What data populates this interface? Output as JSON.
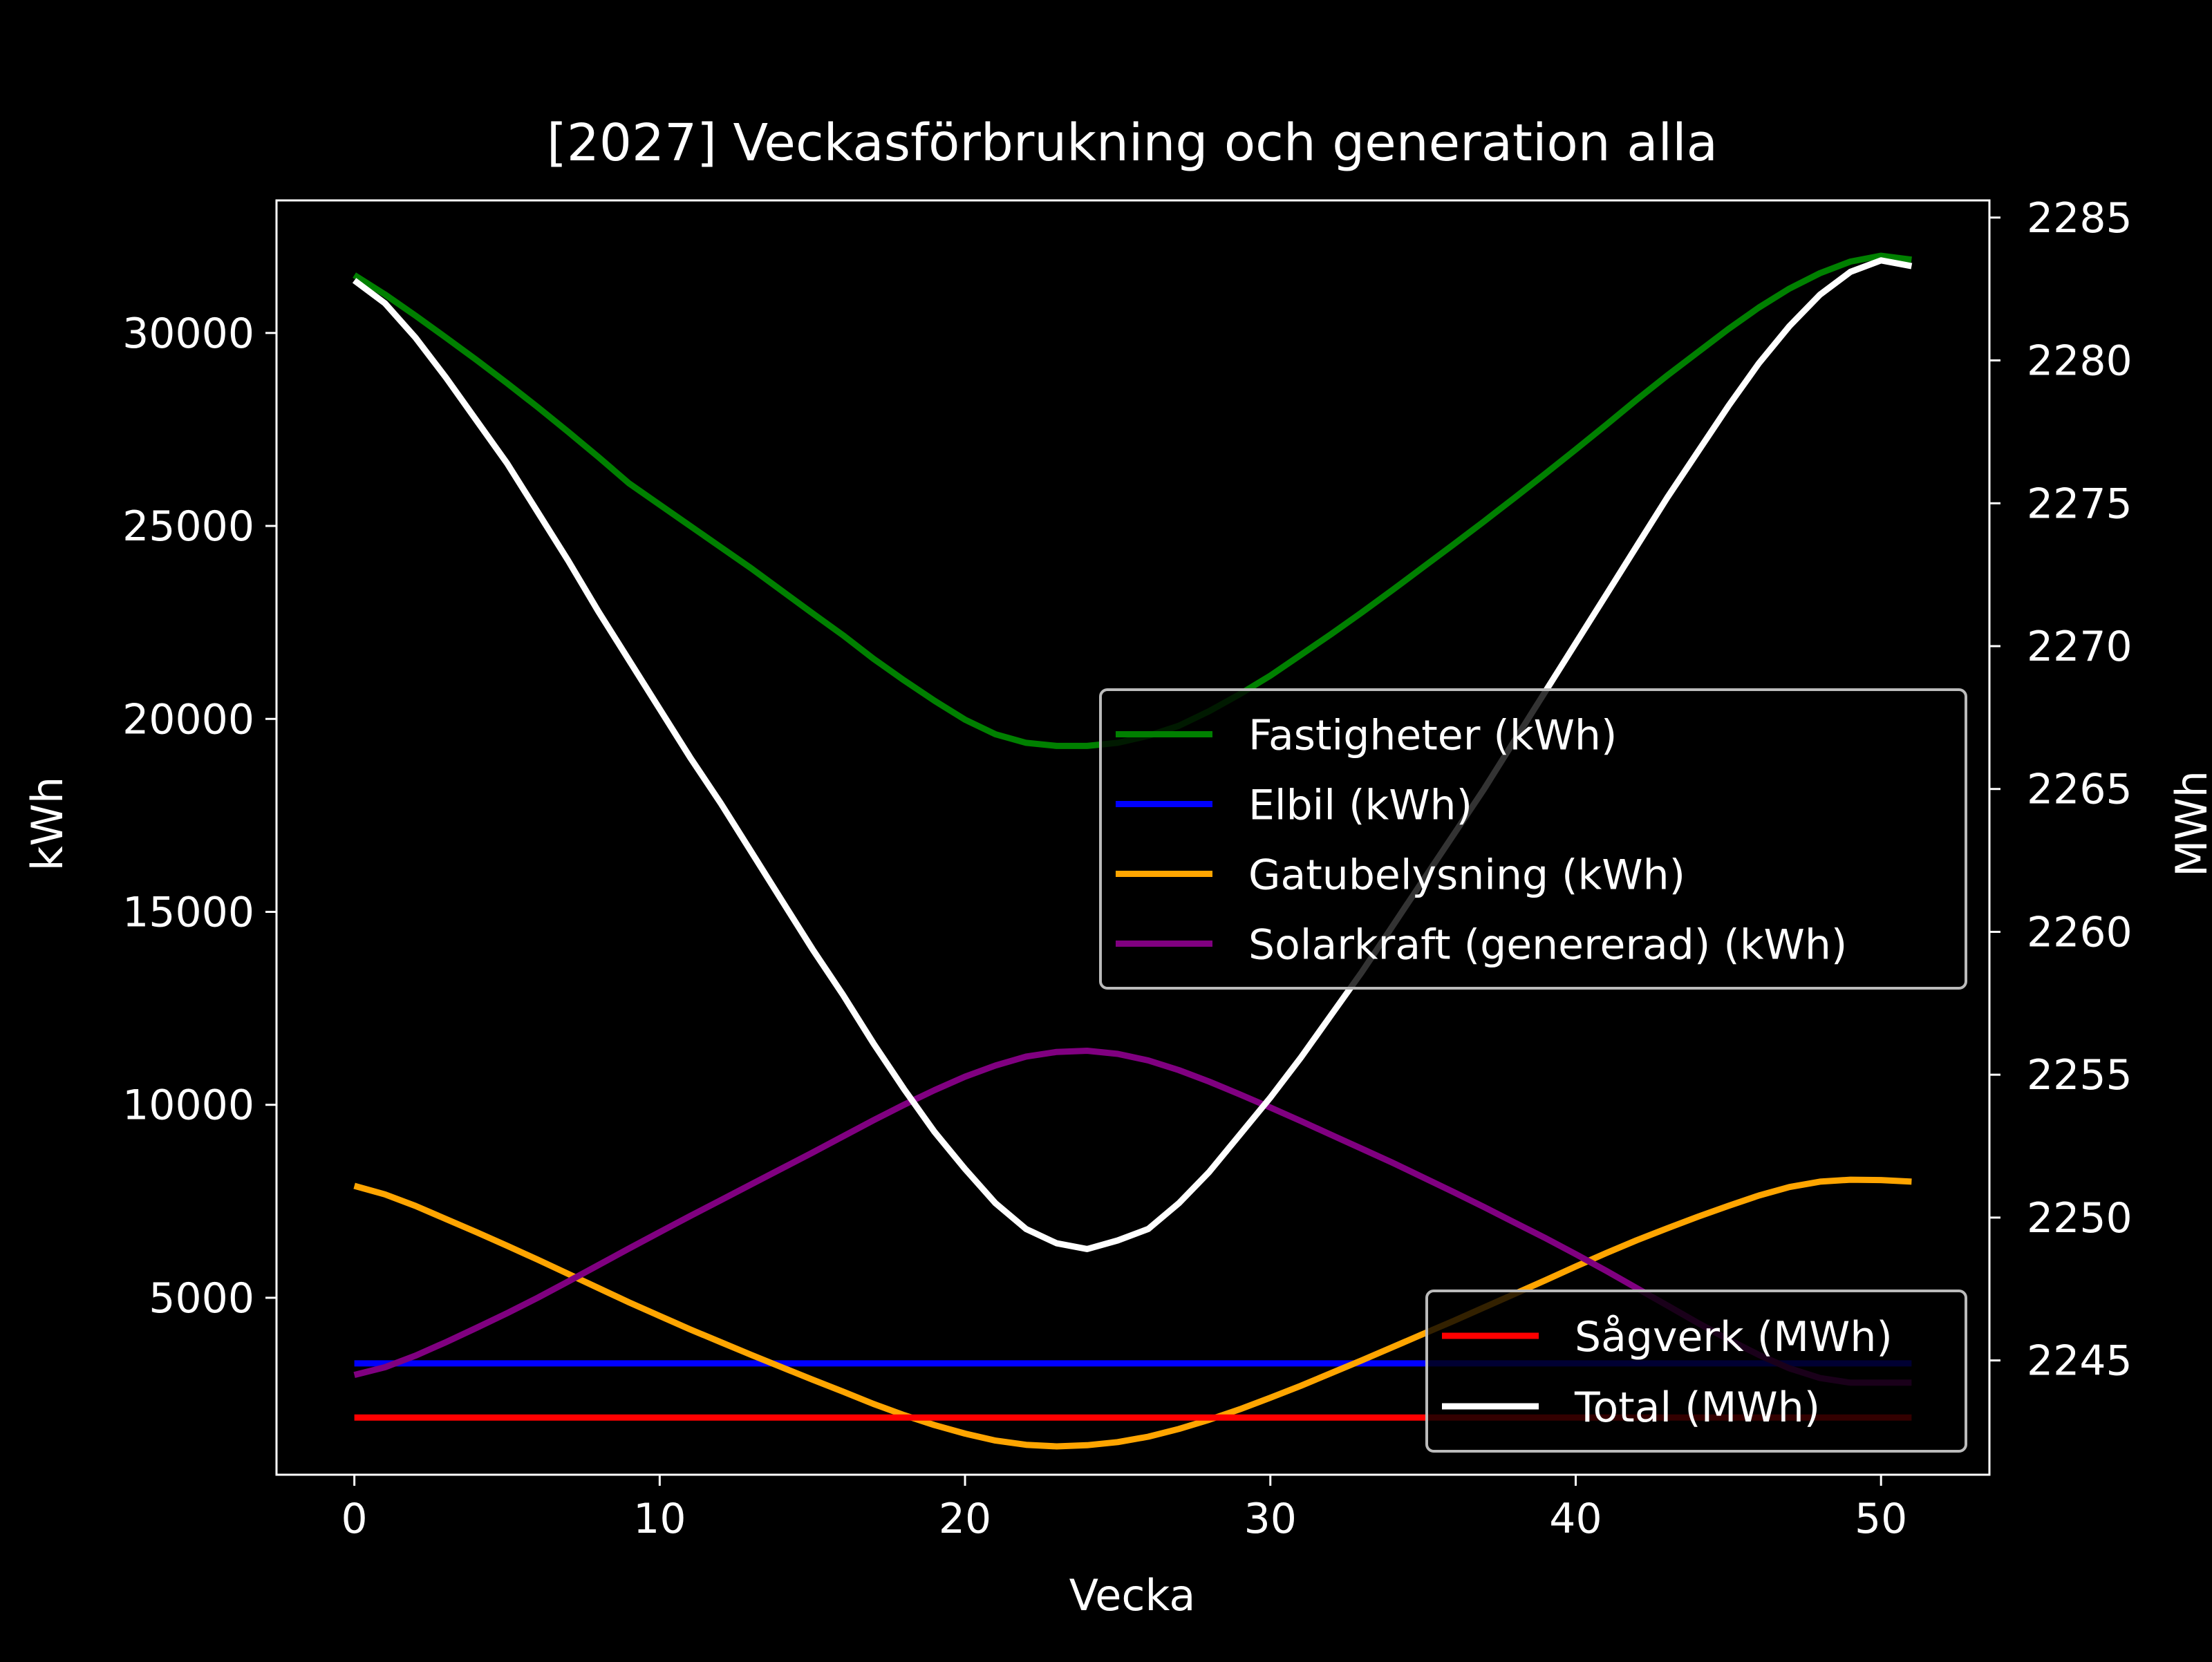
{
  "colors": {
    "background": "#000000",
    "foreground": "#ffffff",
    "Fastigheter (kWh)": "#008000",
    "Elbil (kWh)": "#0000ff",
    "Gatubelysning (kWh)": "#ffa500",
    "Solarkraft (genererad) (kWh)": "#800080",
    "Sågverk (MWh)": "#ff0000",
    "Total (MWh)": "#ffffff"
  },
  "chart_data": {
    "type": "line",
    "title": "[2027] Veckasförbrukning och generation alla",
    "xlabel": "Vecka",
    "ylabel": "kWh",
    "y2label": "MWh",
    "xlim": [
      -2.55,
      53.55
    ],
    "ylim": [
      415,
      33435
    ],
    "y2lim": [
      2241,
      2285.6
    ],
    "xticks": [
      0,
      10,
      20,
      30,
      40,
      50
    ],
    "yticks": [
      5000,
      10000,
      15000,
      20000,
      25000,
      30000
    ],
    "y2ticks": [
      2245,
      2250,
      2255,
      2260,
      2265,
      2270,
      2275,
      2280,
      2285
    ],
    "grid": false,
    "x": [
      0,
      1,
      2,
      3,
      4,
      5,
      6,
      7,
      8,
      9,
      10,
      11,
      12,
      13,
      14,
      15,
      16,
      17,
      18,
      19,
      20,
      21,
      22,
      23,
      24,
      25,
      26,
      27,
      28,
      29,
      30,
      31,
      32,
      33,
      34,
      35,
      36,
      37,
      38,
      39,
      40,
      41,
      42,
      43,
      44,
      45,
      46,
      47,
      48,
      49,
      50,
      51
    ],
    "series_left": [
      {
        "name": "Fastigheter (kWh)",
        "values": [
          31500,
          31000,
          30450,
          29880,
          29300,
          28700,
          28080,
          27440,
          26780,
          26100,
          25550,
          25000,
          24450,
          23900,
          23320,
          22740,
          22170,
          21560,
          21000,
          20470,
          19980,
          19600,
          19380,
          19300,
          19300,
          19380,
          19560,
          19820,
          20200,
          20640,
          21120,
          21660,
          22200,
          22760,
          23340,
          23930,
          24520,
          25120,
          25730,
          26350,
          26980,
          27620,
          28270,
          28900,
          29500,
          30100,
          30660,
          31150,
          31550,
          31850,
          32000,
          31900
        ]
      },
      {
        "name": "Elbil (kWh)",
        "values": [
          3300,
          3300,
          3300,
          3300,
          3300,
          3300,
          3300,
          3300,
          3300,
          3300,
          3300,
          3300,
          3300,
          3300,
          3300,
          3300,
          3300,
          3300,
          3300,
          3300,
          3300,
          3300,
          3300,
          3300,
          3300,
          3300,
          3300,
          3300,
          3300,
          3300,
          3300,
          3300,
          3300,
          3300,
          3300,
          3300,
          3300,
          3300,
          3300,
          3300,
          3300,
          3300,
          3300,
          3300,
          3300,
          3300,
          3300,
          3300,
          3300,
          3300,
          3300,
          3300
        ]
      },
      {
        "name": "Gatubelysning (kWh)",
        "values": [
          7900,
          7680,
          7380,
          7040,
          6700,
          6350,
          5990,
          5620,
          5250,
          4880,
          4530,
          4180,
          3850,
          3520,
          3200,
          2880,
          2570,
          2250,
          1960,
          1700,
          1480,
          1300,
          1190,
          1150,
          1180,
          1260,
          1400,
          1600,
          1840,
          2110,
          2410,
          2720,
          3050,
          3380,
          3720,
          4060,
          4400,
          4750,
          5100,
          5450,
          5810,
          6160,
          6490,
          6800,
          7100,
          7380,
          7650,
          7870,
          8010,
          8060,
          8050,
          8010
        ]
      },
      {
        "name": "Solarkraft (genererad) (kWh)",
        "values": [
          3000,
          3200,
          3500,
          3850,
          4220,
          4600,
          5000,
          5420,
          5850,
          6280,
          6700,
          7120,
          7530,
          7940,
          8350,
          8760,
          9180,
          9600,
          10000,
          10380,
          10730,
          11020,
          11250,
          11370,
          11400,
          11320,
          11150,
          10900,
          10600,
          10270,
          9930,
          9580,
          9220,
          8860,
          8500,
          8120,
          7740,
          7350,
          6950,
          6550,
          6130,
          5700,
          5250,
          4800,
          4350,
          3920,
          3520,
          3170,
          2920,
          2800,
          2800,
          2800
        ]
      }
    ],
    "series_right": [
      {
        "name": "Sågverk (MWh)",
        "values": [
          2243,
          2243,
          2243,
          2243,
          2243,
          2243,
          2243,
          2243,
          2243,
          2243,
          2243,
          2243,
          2243,
          2243,
          2243,
          2243,
          2243,
          2243,
          2243,
          2243,
          2243,
          2243,
          2243,
          2243,
          2243,
          2243,
          2243,
          2243,
          2243,
          2243,
          2243,
          2243,
          2243,
          2243,
          2243,
          2243,
          2243,
          2243,
          2243,
          2243,
          2243,
          2243,
          2243,
          2243,
          2243,
          2243,
          2243,
          2243,
          2243,
          2243,
          2243,
          2243
        ]
      },
      {
        "name": "Total (MWh)",
        "values": [
          2282.8,
          2282.0,
          2280.8,
          2279.4,
          2277.9,
          2276.4,
          2274.7,
          2273.0,
          2271.2,
          2269.5,
          2267.8,
          2266.1,
          2264.5,
          2262.8,
          2261.1,
          2259.4,
          2257.8,
          2256.1,
          2254.5,
          2253.0,
          2251.7,
          2250.5,
          2249.6,
          2249.1,
          2248.9,
          2249.2,
          2249.6,
          2250.5,
          2251.6,
          2252.9,
          2254.2,
          2255.6,
          2257.1,
          2258.6,
          2260.2,
          2261.8,
          2263.4,
          2265.0,
          2266.7,
          2268.4,
          2270.1,
          2271.8,
          2273.5,
          2275.2,
          2276.8,
          2278.4,
          2279.9,
          2281.2,
          2282.3,
          2283.1,
          2283.5,
          2283.3
        ]
      }
    ],
    "legend_left": {
      "placement": "center-right",
      "entries": [
        "Fastigheter (kWh)",
        "Elbil (kWh)",
        "Gatubelysning (kWh)",
        "Solarkraft (genererad) (kWh)"
      ]
    },
    "legend_right": {
      "placement": "lower-right",
      "entries": [
        "Sågverk (MWh)",
        "Total (MWh)"
      ]
    }
  }
}
